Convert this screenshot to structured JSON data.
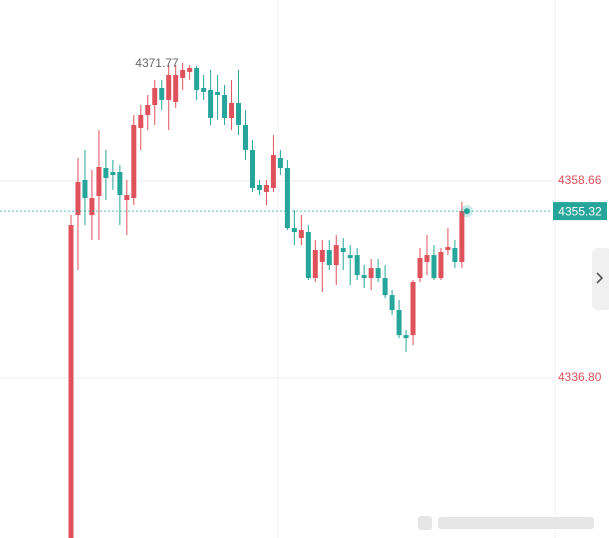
{
  "chart_data": {
    "type": "candlestick",
    "up_color": "#e0525b",
    "down_color": "#26a69a",
    "ylim": [
      4319.05,
      4378.74
    ],
    "yticks": [
      4358.66,
      {
        "value": 4336.8,
        "label": "4336.80"
      }
    ],
    "grid": true,
    "open": [
      4318.81,
      4354.88,
      4358.77,
      4354.88,
      4356.99,
      4360.1,
      4359.66,
      4359.66,
      4356.55,
      4356.77,
      4364.54,
      4365.98,
      4367.09,
      4368.98,
      4367.65,
      4367.43,
      4370.09,
      4370.76,
      4371.2,
      4368.98,
      4368.76,
      4368.54,
      4368.2,
      4365.65,
      4367.32,
      4364.87,
      4362.1,
      4358.21,
      4357.44,
      4357.88,
      4361.21,
      4360.1,
      4353.44,
      4352.33,
      4353.0,
      4347.89,
      4349.67,
      4351.0,
      4349.33,
      4351.22,
      4350.44,
      4350.44,
      4348.22,
      4347.89,
      4349.0,
      4347.89,
      4346.0,
      4344.34,
      4341.56,
      4341.56,
      4347.89,
      4349.67,
      4350.44,
      4347.89,
      4351.0,
      4351.22,
      4349.67
    ],
    "high": [
      4354.88,
      4361.21,
      4362.1,
      4359.88,
      4364.32,
      4362.1,
      4360.99,
      4360.43,
      4358.77,
      4365.98,
      4367.09,
      4368.2,
      4369.87,
      4369.87,
      4371.53,
      4371.53,
      4371.77,
      4371.5,
      4371.4,
      4370.42,
      4370.98,
      4370.42,
      4369.31,
      4369.87,
      4370.98,
      4366.54,
      4363.21,
      4358.77,
      4358.77,
      4363.76,
      4362.1,
      4360.99,
      4355.44,
      4354.88,
      4353.77,
      4352.11,
      4352.11,
      4352.11,
      4352.66,
      4352.33,
      4351.55,
      4351.22,
      4349.33,
      4350.0,
      4350.0,
      4349.33,
      4346.56,
      4345.45,
      4342.12,
      4347.67,
      4351.22,
      4352.66,
      4351.55,
      4351.22,
      4353.44,
      4352.11,
      4356.33
    ],
    "low": [
      4318.81,
      4348.78,
      4353.77,
      4352.11,
      4352.11,
      4356.55,
      4357.66,
      4353.77,
      4352.66,
      4355.99,
      4362.1,
      4364.32,
      4364.87,
      4366.54,
      4364.32,
      4366.76,
      4368.76,
      4369.87,
      4367.65,
      4367.65,
      4364.87,
      4365.43,
      4364.87,
      4364.32,
      4363.76,
      4360.99,
      4357.44,
      4357.1,
      4355.99,
      4357.44,
      4359.32,
      4353.22,
      4351.55,
      4351.55,
      4347.67,
      4347.45,
      4346.34,
      4348.78,
      4347.11,
      4348.78,
      4347.11,
      4347.67,
      4346.78,
      4346.56,
      4347.45,
      4345.67,
      4343.78,
      4341.23,
      4339.68,
      4340.45,
      4347.45,
      4348.22,
      4347.67,
      4347.67,
      4350.44,
      4349.0,
      4349.0
    ],
    "close": [
      4353.77,
      4358.55,
      4356.77,
      4356.77,
      4360.21,
      4358.99,
      4359.32,
      4357.1,
      4357.1,
      4364.87,
      4365.98,
      4367.09,
      4368.98,
      4367.65,
      4370.42,
      4370.42,
      4370.98,
      4371.2,
      4368.76,
      4368.54,
      4365.65,
      4368.2,
      4365.65,
      4367.32,
      4364.87,
      4362.1,
      4357.88,
      4357.66,
      4358.21,
      4361.54,
      4360.1,
      4353.44,
      4353.0,
      4353.22,
      4347.89,
      4351.0,
      4351.0,
      4349.33,
      4351.55,
      4350.78,
      4350.11,
      4348.22,
      4347.89,
      4349.0,
      4347.89,
      4346.0,
      4344.34,
      4341.56,
      4341.23,
      4347.45,
      4350.11,
      4350.44,
      4347.89,
      4350.78,
      4351.33,
      4349.67,
      4355.32
    ]
  }
}
